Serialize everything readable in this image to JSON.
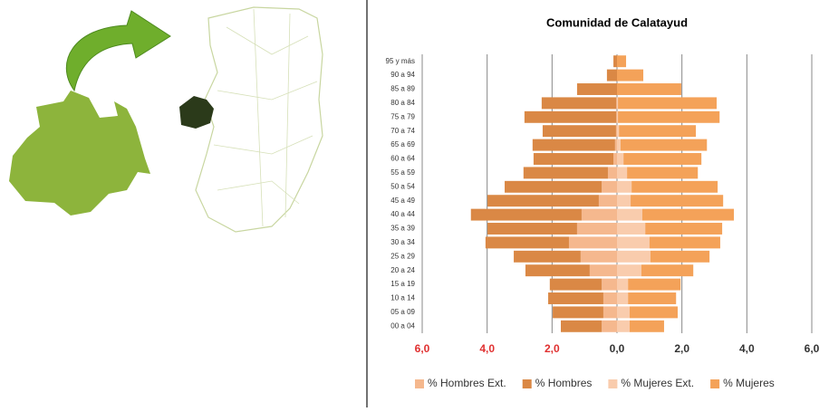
{
  "chart_data": {
    "type": "bar",
    "orientation": "horizontal",
    "stacked": true,
    "title": "Comunidad de Calatayud",
    "categories": [
      "00 a 04",
      "05 a 09",
      "10 a 14",
      "15 a 19",
      "20 a 24",
      "25 a 29",
      "30 a 34",
      "35 a 39",
      "40 a 44",
      "45 a 49",
      "50 a 54",
      "55 a 59",
      "60 a 64",
      "65 a 69",
      "70 a 74",
      "75 a 79",
      "80 a 84",
      "85 a 89",
      "90 a 94",
      "95 y más"
    ],
    "series": [
      {
        "name": "% Hombres Ext.",
        "color": "#f5b88e",
        "values": [
          -0.47,
          -0.42,
          -0.42,
          -0.47,
          -0.84,
          -1.12,
          -1.48,
          -1.23,
          -1.09,
          -0.56,
          -0.47,
          -0.28,
          -0.11,
          -0.06,
          -0.03,
          -0.02,
          -0.02,
          0,
          0,
          0
        ]
      },
      {
        "name": "% Hombres",
        "color": "#da8845",
        "values": [
          -1.26,
          -1.56,
          -1.7,
          -1.6,
          -1.98,
          -2.06,
          -2.57,
          -2.76,
          -3.41,
          -3.43,
          -2.99,
          -2.6,
          -2.46,
          -2.54,
          -2.26,
          -2.83,
          -2.3,
          -1.23,
          -0.31,
          -0.11
        ]
      },
      {
        "name": "% Mujeres Ext.",
        "color": "#f9ccad",
        "values": [
          0.39,
          0.39,
          0.34,
          0.34,
          0.75,
          1.03,
          1.0,
          0.87,
          0.78,
          0.42,
          0.45,
          0.31,
          0.2,
          0.11,
          0.06,
          0.03,
          0.03,
          0,
          0,
          0
        ]
      },
      {
        "name": "% Mujeres",
        "color": "#f4a259",
        "values": [
          1.06,
          1.48,
          1.48,
          1.62,
          1.6,
          1.82,
          2.18,
          2.37,
          2.82,
          2.85,
          2.65,
          2.18,
          2.4,
          2.66,
          2.37,
          3.13,
          3.04,
          1.98,
          0.81,
          0.28
        ]
      }
    ],
    "xlim": [
      -6,
      6
    ],
    "xticks": [
      {
        "value": -6,
        "label": "6,0"
      },
      {
        "value": -4,
        "label": "4,0"
      },
      {
        "value": -2,
        "label": "2,0"
      },
      {
        "value": 0,
        "label": "0,0"
      },
      {
        "value": 2,
        "label": "2,0"
      },
      {
        "value": 4,
        "label": "4,0"
      },
      {
        "value": 6,
        "label": "6,0"
      }
    ],
    "grid": true,
    "legend": "bottom",
    "negative_tick_color": "#e03030"
  }
}
